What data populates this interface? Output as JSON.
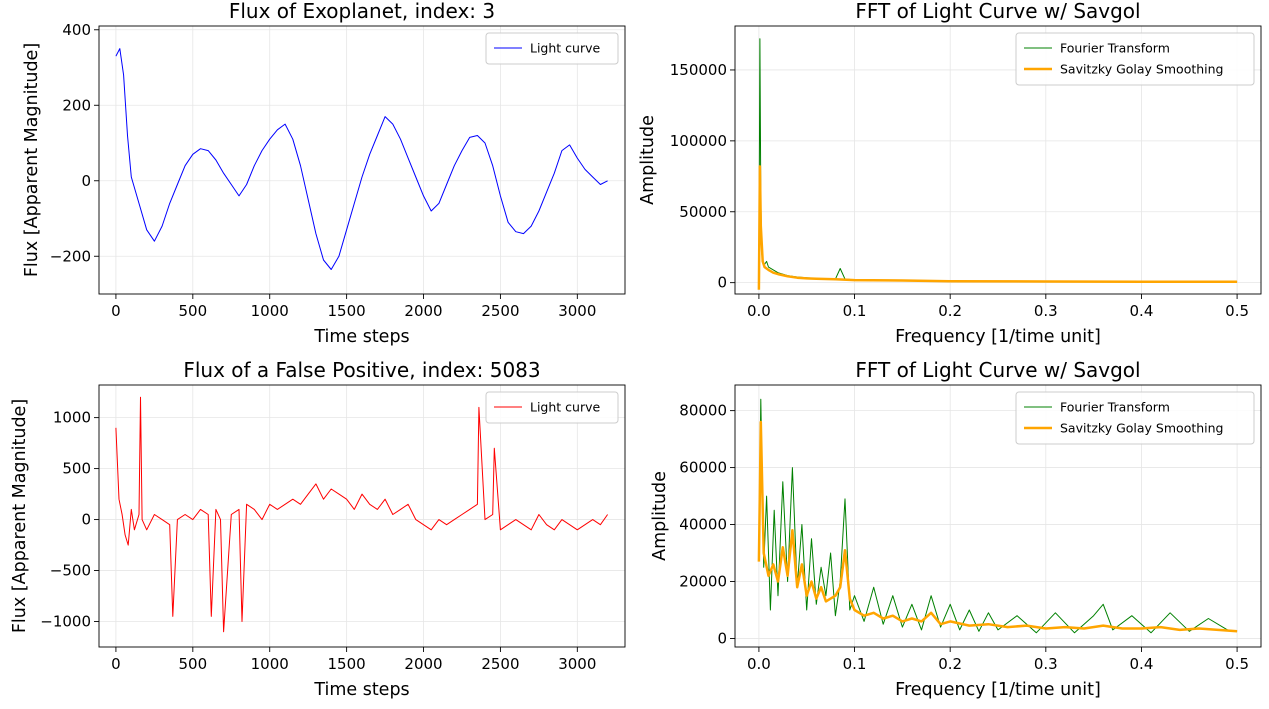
{
  "colors": {
    "exoplanet_flux": "#0000ff",
    "false_positive_flux": "#ff0000",
    "fourier": "#008000",
    "savgol": "#ffa500"
  },
  "chart_data": [
    {
      "id": "exo",
      "type": "line",
      "title": "Flux of Exoplanet, index: 3",
      "xlabel": "Time steps",
      "ylabel": "Flux [Apparent Magnitude]",
      "xlim": [
        -110,
        3310
      ],
      "ylim": [
        -300,
        410
      ],
      "xticks": [
        0,
        500,
        1000,
        1500,
        2000,
        2500,
        3000
      ],
      "xtick_labels": [
        "0",
        "500",
        "1000",
        "1500",
        "2000",
        "2500",
        "3000"
      ],
      "yticks": [
        -200,
        0,
        200,
        400
      ],
      "ytick_labels": [
        "−200",
        "0",
        "200",
        "400"
      ],
      "grid": true,
      "legend_position": "upper-right",
      "series": [
        {
          "name": "Light curve",
          "color": "#0000ff",
          "linewidth": 1,
          "x": [
            0,
            25,
            50,
            75,
            100,
            150,
            200,
            250,
            300,
            350,
            400,
            450,
            500,
            550,
            600,
            650,
            700,
            750,
            800,
            850,
            900,
            950,
            1000,
            1050,
            1100,
            1150,
            1200,
            1250,
            1300,
            1350,
            1400,
            1450,
            1500,
            1550,
            1600,
            1650,
            1700,
            1750,
            1800,
            1850,
            1900,
            1950,
            2000,
            2050,
            2100,
            2150,
            2200,
            2250,
            2300,
            2350,
            2400,
            2450,
            2500,
            2550,
            2600,
            2650,
            2700,
            2750,
            2800,
            2850,
            2900,
            2950,
            3000,
            3050,
            3100,
            3150,
            3197
          ],
          "y": [
            330,
            350,
            280,
            120,
            10,
            -60,
            -130,
            -160,
            -120,
            -60,
            -10,
            40,
            70,
            85,
            80,
            55,
            20,
            -10,
            -40,
            -10,
            40,
            80,
            110,
            135,
            150,
            110,
            40,
            -50,
            -140,
            -210,
            -235,
            -200,
            -130,
            -60,
            10,
            70,
            120,
            170,
            150,
            110,
            60,
            10,
            -40,
            -80,
            -60,
            -10,
            40,
            80,
            115,
            120,
            100,
            40,
            -40,
            -110,
            -135,
            -140,
            -120,
            -80,
            -30,
            20,
            80,
            95,
            60,
            30,
            10,
            -10,
            0
          ]
        }
      ]
    },
    {
      "id": "fft1",
      "type": "line",
      "title": "FFT of Light Curve w/ Savgol",
      "xlabel": "Frequency [1/time unit]",
      "ylabel": "Amplitude",
      "xlim": [
        -0.025,
        0.525
      ],
      "ylim": [
        -8000,
        181000
      ],
      "xticks": [
        0.0,
        0.1,
        0.2,
        0.3,
        0.4,
        0.5
      ],
      "xtick_labels": [
        "0.0",
        "0.1",
        "0.2",
        "0.3",
        "0.4",
        "0.5"
      ],
      "yticks": [
        0,
        50000,
        100000,
        150000
      ],
      "ytick_labels": [
        "0",
        "50000",
        "100000",
        "150000"
      ],
      "grid": true,
      "legend_position": "upper-right",
      "series": [
        {
          "name": "Fourier Transform",
          "color": "#008000",
          "linewidth": 1,
          "x": [
            0.0,
            0.001,
            0.002,
            0.003,
            0.005,
            0.008,
            0.01,
            0.015,
            0.02,
            0.03,
            0.04,
            0.05,
            0.06,
            0.07,
            0.08,
            0.085,
            0.09,
            0.1,
            0.12,
            0.15,
            0.2,
            0.25,
            0.3,
            0.35,
            0.4,
            0.45,
            0.5
          ],
          "y": [
            5000,
            172000,
            60000,
            20000,
            12000,
            15000,
            11000,
            9000,
            7000,
            5000,
            4000,
            3500,
            3000,
            2800,
            2500,
            10000,
            2500,
            2000,
            1800,
            1500,
            1200,
            1000,
            900,
            800,
            800,
            700,
            600
          ]
        },
        {
          "name": "Savitzky Golay Smoothing",
          "color": "#ffa500",
          "linewidth": 2.5,
          "x": [
            0.0,
            0.001,
            0.002,
            0.004,
            0.006,
            0.01,
            0.015,
            0.02,
            0.03,
            0.04,
            0.05,
            0.06,
            0.08,
            0.1,
            0.15,
            0.2,
            0.3,
            0.4,
            0.5
          ],
          "y": [
            -5000,
            82000,
            40000,
            15000,
            11000,
            9000,
            7000,
            6000,
            4500,
            3500,
            3000,
            2800,
            2400,
            1800,
            1500,
            1000,
            800,
            700,
            600
          ]
        }
      ]
    },
    {
      "id": "fp",
      "type": "line",
      "title": "Flux of a False Positive, index: 5083",
      "xlabel": "Time steps",
      "ylabel": "Flux [Apparent Magnitude]",
      "xlim": [
        -110,
        3310
      ],
      "ylim": [
        -1250,
        1320
      ],
      "xticks": [
        0,
        500,
        1000,
        1500,
        2000,
        2500,
        3000
      ],
      "xtick_labels": [
        "0",
        "500",
        "1000",
        "1500",
        "2000",
        "2500",
        "3000"
      ],
      "yticks": [
        -1000,
        -500,
        0,
        500,
        1000
      ],
      "ytick_labels": [
        "−1000",
        "−500",
        "0",
        "500",
        "1000"
      ],
      "grid": true,
      "legend_position": "upper-right",
      "series": [
        {
          "name": "Light curve",
          "color": "#ff0000",
          "linewidth": 1,
          "x": [
            0,
            20,
            40,
            60,
            80,
            100,
            120,
            150,
            160,
            170,
            200,
            250,
            300,
            350,
            370,
            400,
            450,
            500,
            550,
            600,
            620,
            650,
            680,
            700,
            750,
            800,
            820,
            850,
            900,
            950,
            1000,
            1050,
            1100,
            1150,
            1200,
            1250,
            1300,
            1350,
            1400,
            1450,
            1500,
            1550,
            1600,
            1650,
            1700,
            1750,
            1800,
            1850,
            1900,
            1950,
            2000,
            2050,
            2100,
            2150,
            2200,
            2250,
            2300,
            2350,
            2360,
            2400,
            2450,
            2460,
            2500,
            2550,
            2600,
            2650,
            2700,
            2750,
            2800,
            2850,
            2900,
            2950,
            3000,
            3050,
            3100,
            3150,
            3197
          ],
          "y": [
            900,
            200,
            50,
            -150,
            -250,
            100,
            -100,
            50,
            1200,
            0,
            -100,
            50,
            0,
            -50,
            -950,
            0,
            50,
            0,
            100,
            50,
            -950,
            100,
            0,
            -1100,
            50,
            100,
            -1000,
            150,
            100,
            0,
            150,
            100,
            150,
            200,
            150,
            250,
            350,
            200,
            300,
            250,
            200,
            100,
            250,
            150,
            100,
            200,
            50,
            100,
            150,
            0,
            -50,
            -100,
            0,
            -50,
            0,
            50,
            100,
            150,
            1100,
            0,
            50,
            700,
            -100,
            -50,
            0,
            -50,
            -100,
            50,
            -50,
            -100,
            0,
            -50,
            -100,
            -50,
            0,
            -50,
            50
          ]
        }
      ]
    },
    {
      "id": "fft2",
      "type": "line",
      "title": "FFT of Light Curve w/ Savgol",
      "xlabel": "Frequency [1/time unit]",
      "ylabel": "Amplitude",
      "xlim": [
        -0.025,
        0.525
      ],
      "ylim": [
        -3000,
        89000
      ],
      "xticks": [
        0.0,
        0.1,
        0.2,
        0.3,
        0.4,
        0.5
      ],
      "xtick_labels": [
        "0.0",
        "0.1",
        "0.2",
        "0.3",
        "0.4",
        "0.5"
      ],
      "yticks": [
        0,
        20000,
        40000,
        60000,
        80000
      ],
      "ytick_labels": [
        "0",
        "20000",
        "40000",
        "60000",
        "80000"
      ],
      "grid": true,
      "legend_position": "upper-right",
      "series": [
        {
          "name": "Fourier Transform",
          "color": "#008000",
          "linewidth": 1,
          "x": [
            0.0,
            0.002,
            0.005,
            0.008,
            0.012,
            0.016,
            0.02,
            0.025,
            0.03,
            0.035,
            0.04,
            0.045,
            0.05,
            0.055,
            0.06,
            0.065,
            0.07,
            0.075,
            0.08,
            0.085,
            0.09,
            0.095,
            0.1,
            0.11,
            0.12,
            0.13,
            0.14,
            0.15,
            0.16,
            0.17,
            0.18,
            0.19,
            0.2,
            0.21,
            0.22,
            0.23,
            0.24,
            0.25,
            0.27,
            0.29,
            0.31,
            0.33,
            0.35,
            0.36,
            0.37,
            0.39,
            0.41,
            0.43,
            0.45,
            0.47,
            0.49,
            0.5
          ],
          "y": [
            30000,
            84000,
            25000,
            50000,
            10000,
            45000,
            15000,
            55000,
            20000,
            60000,
            18000,
            40000,
            10000,
            35000,
            12000,
            25000,
            15000,
            30000,
            8000,
            20000,
            49000,
            10000,
            15000,
            6000,
            18000,
            5000,
            15000,
            4000,
            12000,
            3000,
            15000,
            4000,
            12000,
            3000,
            10000,
            2500,
            9000,
            3000,
            8000,
            2000,
            9000,
            2000,
            8000,
            12000,
            3000,
            8000,
            2000,
            9000,
            2500,
            7000,
            3000,
            2500
          ]
        },
        {
          "name": "Savitzky Golay Smoothing",
          "color": "#ffa500",
          "linewidth": 2.5,
          "x": [
            0.0,
            0.002,
            0.005,
            0.01,
            0.015,
            0.02,
            0.025,
            0.03,
            0.035,
            0.04,
            0.045,
            0.05,
            0.055,
            0.06,
            0.065,
            0.07,
            0.08,
            0.085,
            0.09,
            0.095,
            0.1,
            0.11,
            0.12,
            0.13,
            0.14,
            0.15,
            0.16,
            0.17,
            0.18,
            0.19,
            0.2,
            0.22,
            0.24,
            0.26,
            0.28,
            0.3,
            0.32,
            0.34,
            0.36,
            0.38,
            0.4,
            0.42,
            0.44,
            0.46,
            0.48,
            0.5
          ],
          "y": [
            27000,
            76000,
            30000,
            22000,
            26000,
            20000,
            32000,
            22000,
            38000,
            18000,
            26000,
            15000,
            20000,
            14000,
            18000,
            13000,
            15000,
            18000,
            31000,
            14000,
            10000,
            8000,
            9000,
            7000,
            8000,
            6000,
            7000,
            6000,
            9000,
            5000,
            6000,
            4500,
            5000,
            4000,
            4500,
            3500,
            4000,
            3500,
            4500,
            3500,
            3500,
            4000,
            3000,
            3500,
            3000,
            2500
          ]
        }
      ]
    }
  ]
}
